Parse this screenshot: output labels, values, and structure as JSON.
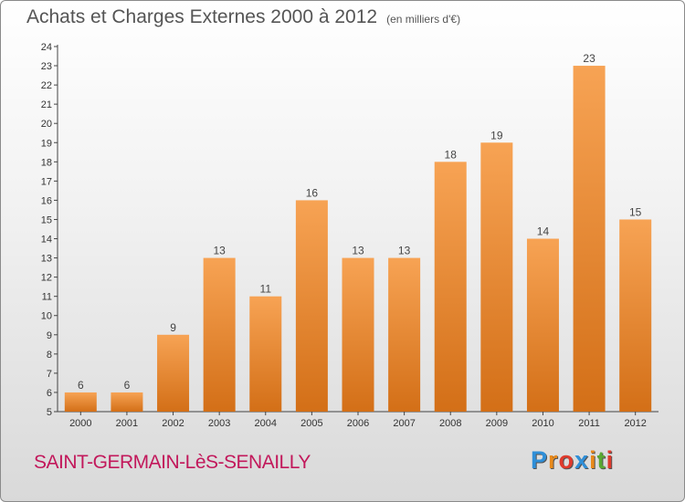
{
  "title": "Achats et Charges Externes 2000 à 2012",
  "subtitle": "(en milliers d'€)",
  "commune": "SAINT-GERMAIN-LèS-SENAILLY",
  "logo": {
    "letters": [
      "P",
      "r",
      "o",
      "x",
      "i",
      "t",
      "i"
    ],
    "colors": [
      "#2f8fd8",
      "#e8891b",
      "#e03a2c",
      "#2f8fd8",
      "#e8891b",
      "#5aa832",
      "#e03a2c"
    ]
  },
  "chart_data": {
    "type": "bar",
    "title": "Achats et Charges Externes 2000 à 2012",
    "categories": [
      "2000",
      "2001",
      "2002",
      "2003",
      "2004",
      "2005",
      "2006",
      "2007",
      "2008",
      "2009",
      "2010",
      "2011",
      "2012"
    ],
    "values": [
      6,
      6,
      9,
      13,
      11,
      16,
      13,
      13,
      18,
      19,
      14,
      23,
      15
    ],
    "ylim": [
      5,
      24
    ],
    "yticks": [
      5,
      6,
      7,
      8,
      9,
      10,
      11,
      12,
      13,
      14,
      15,
      16,
      17,
      18,
      19,
      20,
      21,
      22,
      23,
      24
    ],
    "grid": false,
    "legend": "none",
    "bar_color": "#f39a45"
  }
}
